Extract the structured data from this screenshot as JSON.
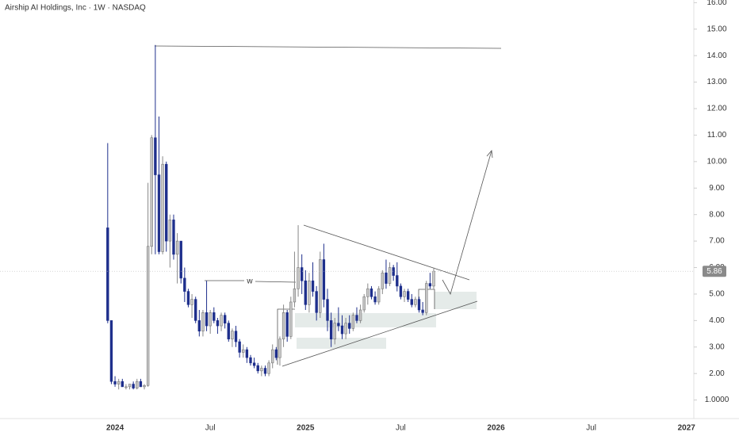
{
  "chart_data": {
    "type": "candlestick",
    "title": "Airship AI Holdings, Inc · 1W · NASDAQ",
    "annotation": "w",
    "x": [
      0,
      1,
      2,
      3,
      4,
      5,
      6,
      7,
      8,
      9,
      10,
      11,
      12,
      13,
      14,
      15,
      16,
      17,
      18,
      19,
      20,
      21,
      22,
      23,
      24,
      25,
      26,
      27,
      28,
      29,
      30,
      31,
      32,
      33,
      34,
      35,
      36,
      37,
      38,
      39,
      40,
      41,
      42,
      43,
      44,
      45,
      46,
      47,
      48,
      49,
      50,
      51,
      52,
      53,
      54,
      55,
      56,
      57,
      58,
      59,
      60,
      61,
      62,
      63,
      64,
      65,
      66,
      67,
      68,
      69,
      70,
      71,
      72,
      73,
      74,
      75,
      76,
      77,
      78,
      79,
      80,
      81,
      82,
      83,
      84,
      85,
      86,
      87,
      88,
      89
    ],
    "open": [
      7.5,
      4.0,
      1.7,
      1.6,
      1.7,
      1.5,
      1.5,
      1.6,
      1.45,
      1.7,
      1.5,
      1.55,
      6.8,
      10.9,
      9.5,
      6.6,
      9.9,
      7.0,
      7.8,
      6.5,
      7.0,
      5.6,
      5.1,
      4.6,
      4.8,
      4.0,
      3.6,
      4.3,
      3.8,
      4.3,
      4.0,
      3.8,
      4.2,
      3.9,
      3.3,
      3.6,
      3.2,
      2.8,
      2.9,
      2.6,
      2.4,
      2.3,
      2.1,
      2.2,
      2.0,
      2.4,
      2.9,
      2.6,
      3.3,
      4.3,
      3.4,
      4.7,
      5.2,
      6.0,
      5.5,
      4.6,
      5.5,
      5.1,
      4.3,
      6.3,
      4.8,
      4.0,
      3.3,
      3.9,
      3.8,
      3.5,
      3.9,
      3.7,
      4.2,
      4.0,
      4.4,
      4.9,
      5.2,
      4.9,
      4.7,
      5.2,
      5.8,
      5.4,
      6.0,
      5.7,
      5.3,
      4.9,
      5.1,
      4.8,
      4.6,
      4.8,
      4.4,
      4.3,
      5.4,
      5.3
    ],
    "high": [
      10.7,
      4.0,
      1.9,
      1.8,
      1.8,
      1.6,
      1.6,
      1.7,
      1.8,
      1.8,
      1.6,
      9.2,
      11.0,
      14.4,
      11.7,
      10.2,
      10.0,
      8.0,
      8.0,
      7.3,
      7.0,
      6.0,
      5.2,
      5.0,
      4.9,
      4.4,
      4.4,
      5.5,
      4.4,
      4.5,
      4.1,
      4.3,
      4.3,
      4.0,
      3.7,
      3.8,
      3.3,
      3.1,
      3.0,
      2.7,
      2.6,
      2.4,
      2.3,
      2.3,
      2.5,
      3.1,
      3.0,
      3.4,
      4.6,
      4.4,
      4.9,
      6.6,
      7.6,
      6.5,
      5.9,
      5.8,
      6.2,
      5.3,
      6.6,
      6.9,
      5.2,
      4.3,
      4.1,
      4.5,
      4.2,
      4.1,
      4.2,
      4.3,
      4.5,
      4.6,
      5.0,
      5.4,
      5.3,
      5.1,
      5.3,
      5.9,
      6.3,
      6.2,
      6.1,
      6.2,
      5.4,
      5.2,
      5.2,
      5.0,
      4.9,
      4.9,
      4.7,
      5.5,
      5.8,
      6.0
    ],
    "low": [
      3.9,
      1.6,
      1.5,
      1.4,
      1.5,
      1.4,
      1.4,
      1.4,
      1.4,
      1.5,
      1.4,
      1.5,
      6.5,
      6.5,
      6.5,
      6.5,
      6.6,
      6.0,
      6.3,
      5.4,
      5.4,
      4.7,
      4.5,
      4.1,
      3.9,
      3.4,
      3.4,
      3.6,
      3.5,
      3.9,
      3.5,
      3.6,
      3.7,
      3.2,
      3.0,
      3.0,
      2.6,
      2.6,
      2.4,
      2.3,
      2.2,
      2.0,
      1.9,
      1.9,
      1.9,
      2.2,
      2.5,
      2.3,
      3.0,
      3.2,
      3.3,
      4.5,
      4.9,
      5.0,
      4.4,
      4.3,
      4.9,
      4.0,
      4.1,
      4.5,
      3.6,
      3.0,
      3.1,
      3.6,
      3.3,
      3.3,
      3.5,
      3.6,
      3.9,
      3.9,
      4.3,
      4.6,
      4.8,
      4.6,
      4.6,
      5.0,
      5.2,
      5.3,
      5.5,
      5.1,
      4.8,
      4.7,
      4.7,
      4.5,
      4.5,
      4.3,
      4.2,
      4.2,
      5.2,
      5.2
    ],
    "close": [
      4.0,
      1.7,
      1.6,
      1.7,
      1.5,
      1.5,
      1.6,
      1.45,
      1.7,
      1.5,
      1.55,
      6.8,
      10.9,
      9.5,
      6.6,
      9.9,
      7.0,
      7.8,
      6.5,
      7.0,
      5.6,
      5.1,
      4.6,
      4.8,
      4.0,
      3.6,
      4.3,
      3.8,
      4.3,
      4.0,
      3.8,
      4.2,
      3.9,
      3.3,
      3.6,
      3.2,
      2.8,
      2.9,
      2.6,
      2.4,
      2.3,
      2.1,
      2.2,
      2.0,
      2.4,
      2.9,
      2.6,
      3.3,
      4.3,
      3.4,
      4.7,
      5.2,
      6.0,
      5.5,
      4.6,
      5.5,
      5.1,
      4.3,
      6.3,
      4.8,
      4.0,
      3.3,
      3.9,
      3.8,
      3.5,
      3.9,
      3.7,
      4.2,
      4.0,
      4.4,
      4.9,
      5.2,
      4.9,
      4.7,
      5.2,
      5.8,
      5.4,
      6.0,
      5.7,
      5.3,
      4.9,
      5.1,
      4.8,
      4.6,
      4.8,
      4.4,
      4.3,
      5.4,
      5.3,
      5.86
    ],
    "up_color": "#c8c8c8",
    "down_color": "#1e2f8c",
    "xlim": [
      -29.4,
      160
    ],
    "xticks": [
      {
        "value": 2,
        "label": "2024"
      },
      {
        "value": 28,
        "label": "Jul"
      },
      {
        "value": 54,
        "label": "2025"
      },
      {
        "value": 80,
        "label": "Jul"
      },
      {
        "value": 106,
        "label": "2026"
      },
      {
        "value": 132,
        "label": "Jul"
      },
      {
        "value": 158,
        "label": "2027"
      }
    ],
    "ylim": [
      0.3,
      16.1
    ],
    "yticks": [
      {
        "value": 16,
        "label": "16.00"
      },
      {
        "value": 15,
        "label": "15.00"
      },
      {
        "value": 14,
        "label": "14.00"
      },
      {
        "value": 13,
        "label": "13.00"
      },
      {
        "value": 12,
        "label": "12.00"
      },
      {
        "value": 11,
        "label": "11.00"
      },
      {
        "value": 10,
        "label": "10.00"
      },
      {
        "value": 9,
        "label": "9.00"
      },
      {
        "value": 8,
        "label": "8.00"
      },
      {
        "value": 7,
        "label": "7.00"
      },
      {
        "value": 6,
        "label": "6.00"
      },
      {
        "value": 5,
        "label": "5.00"
      },
      {
        "value": 4,
        "label": "4.00"
      },
      {
        "value": 3,
        "label": "3.00"
      },
      {
        "value": 2,
        "label": "2.00"
      },
      {
        "value": 1,
        "label": "1.0000"
      }
    ]
  }
}
